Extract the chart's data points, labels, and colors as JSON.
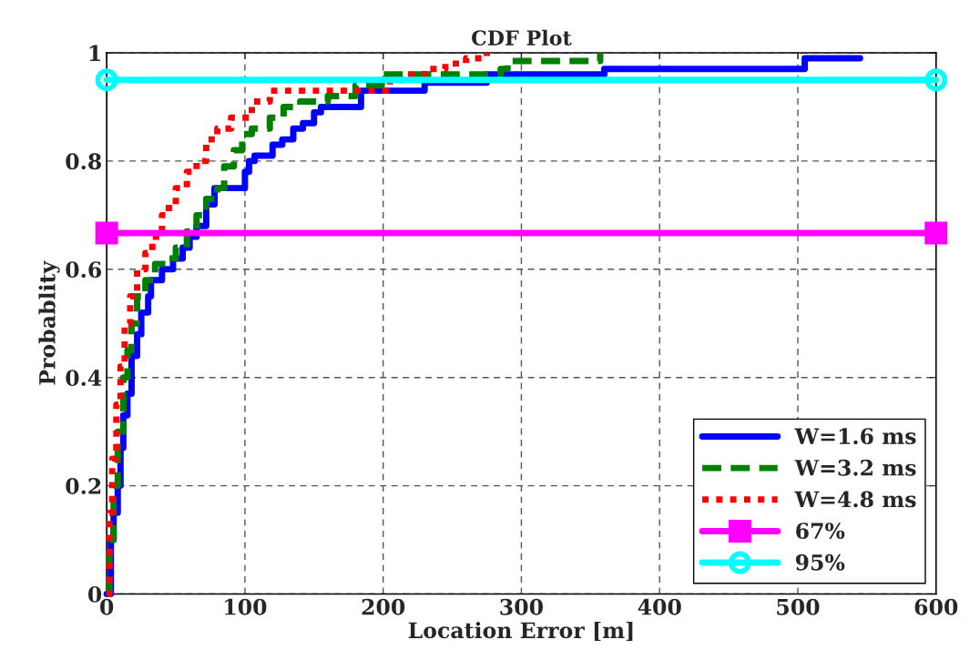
{
  "chart_data": {
    "type": "step",
    "title": "CDF Plot",
    "xlabel": "Location Error [m]",
    "ylabel": "Probablity",
    "xlim": [
      0,
      600
    ],
    "xticks": [
      0,
      100,
      200,
      300,
      400,
      500,
      600
    ],
    "ylim": [
      0,
      1
    ],
    "yticks": [
      0,
      0.2,
      0.4,
      0.6,
      0.8,
      1
    ],
    "grid": true,
    "legend": "bottom right",
    "series": [
      {
        "name": "W=1.6 ms",
        "color": "#0000ff",
        "line_style": "solid",
        "x": [
          0,
          3,
          5,
          8,
          10,
          12,
          15,
          18,
          22,
          25,
          30,
          32,
          40,
          48,
          55,
          60,
          65,
          72,
          78,
          100,
          103,
          107,
          112,
          120,
          127,
          135,
          142,
          150,
          155,
          184,
          230,
          275,
          360,
          505,
          545
        ],
        "values": [
          0,
          0.1,
          0.15,
          0.2,
          0.27,
          0.33,
          0.37,
          0.44,
          0.48,
          0.52,
          0.55,
          0.58,
          0.6,
          0.62,
          0.64,
          0.66,
          0.68,
          0.72,
          0.75,
          0.78,
          0.8,
          0.81,
          0.81,
          0.83,
          0.84,
          0.86,
          0.87,
          0.89,
          0.9,
          0.93,
          0.945,
          0.96,
          0.97,
          0.99,
          0.99
        ]
      },
      {
        "name": "W=3.2 ms",
        "color": "#008000",
        "line_style": "dashed",
        "x": [
          0,
          2,
          5,
          8,
          12,
          15,
          18,
          22,
          28,
          35,
          45,
          50,
          58,
          65,
          72,
          80,
          85,
          92,
          98,
          105,
          118,
          128,
          140,
          160,
          180,
          199,
          285,
          290,
          357
        ],
        "values": [
          0,
          0.1,
          0.2,
          0.3,
          0.4,
          0.45,
          0.5,
          0.55,
          0.58,
          0.61,
          0.62,
          0.64,
          0.67,
          0.7,
          0.73,
          0.75,
          0.79,
          0.82,
          0.85,
          0.86,
          0.88,
          0.9,
          0.91,
          0.92,
          0.94,
          0.96,
          0.97,
          0.985,
          1.0
        ]
      },
      {
        "name": "W=4.8 ms",
        "color": "#ff0000",
        "line_style": "dotted",
        "x": [
          0,
          2,
          4,
          7,
          10,
          13,
          17,
          22,
          28,
          33,
          40,
          45,
          50,
          58,
          65,
          72,
          80,
          90,
          105,
          118,
          200,
          205,
          215,
          230,
          245,
          260,
          275
        ],
        "values": [
          0,
          0.15,
          0.25,
          0.35,
          0.42,
          0.5,
          0.55,
          0.6,
          0.63,
          0.66,
          0.7,
          0.72,
          0.75,
          0.78,
          0.8,
          0.84,
          0.86,
          0.88,
          0.91,
          0.93,
          0.93,
          0.95,
          0.96,
          0.97,
          0.98,
          0.99,
          1.0
        ]
      },
      {
        "name": "67%",
        "color": "#ff00ff",
        "type": "line",
        "marker": "square",
        "line_style": "solid",
        "x": [
          0,
          600
        ],
        "values": [
          0.667,
          0.667
        ]
      },
      {
        "name": "95%",
        "color": "#00ffff",
        "type": "line",
        "marker": "circle",
        "line_style": "solid",
        "x": [
          0,
          600
        ],
        "values": [
          0.95,
          0.95
        ]
      }
    ]
  }
}
